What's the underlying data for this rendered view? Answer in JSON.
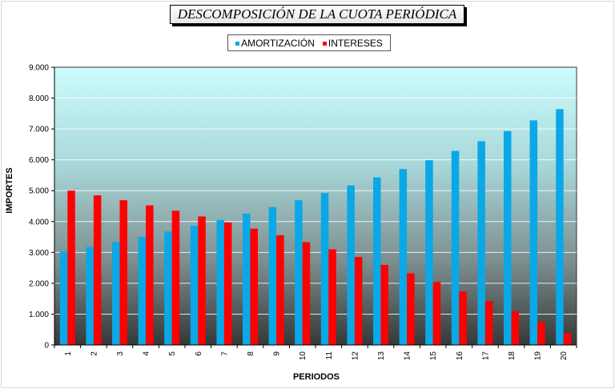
{
  "chart_data": {
    "type": "bar",
    "title": "DESCOMPOSICIÓN DE LA CUOTA PERIÓDICA",
    "xlabel": "PERIODOS",
    "ylabel": "IMPORTES",
    "ylim": [
      0,
      9000
    ],
    "yticks": [
      "0",
      "1.000",
      "2.000",
      "3.000",
      "4.000",
      "5.000",
      "6.000",
      "7.000",
      "8.000",
      "9.000"
    ],
    "grid": true,
    "legend_position": "top",
    "categories": [
      "1",
      "2",
      "3",
      "4",
      "5",
      "6",
      "7",
      "8",
      "9",
      "10",
      "11",
      "12",
      "13",
      "14",
      "15",
      "16",
      "17",
      "18",
      "19",
      "20"
    ],
    "series": [
      {
        "name": "AMORTIZACIÓN",
        "color": "#0aa8e6",
        "values": [
          3024,
          3175,
          3334,
          3501,
          3676,
          3860,
          4053,
          4255,
          4468,
          4691,
          4926,
          5172,
          5431,
          5702,
          5987,
          6287,
          6601,
          6931,
          7278,
          7642
        ]
      },
      {
        "name": "INTERESES",
        "color": "#ff0000",
        "values": [
          5000,
          4849,
          4690,
          4524,
          4348,
          4165,
          3971,
          3769,
          3556,
          3333,
          3098,
          2852,
          2594,
          2322,
          2037,
          1738,
          1423,
          1093,
          747,
          382
        ]
      }
    ]
  }
}
